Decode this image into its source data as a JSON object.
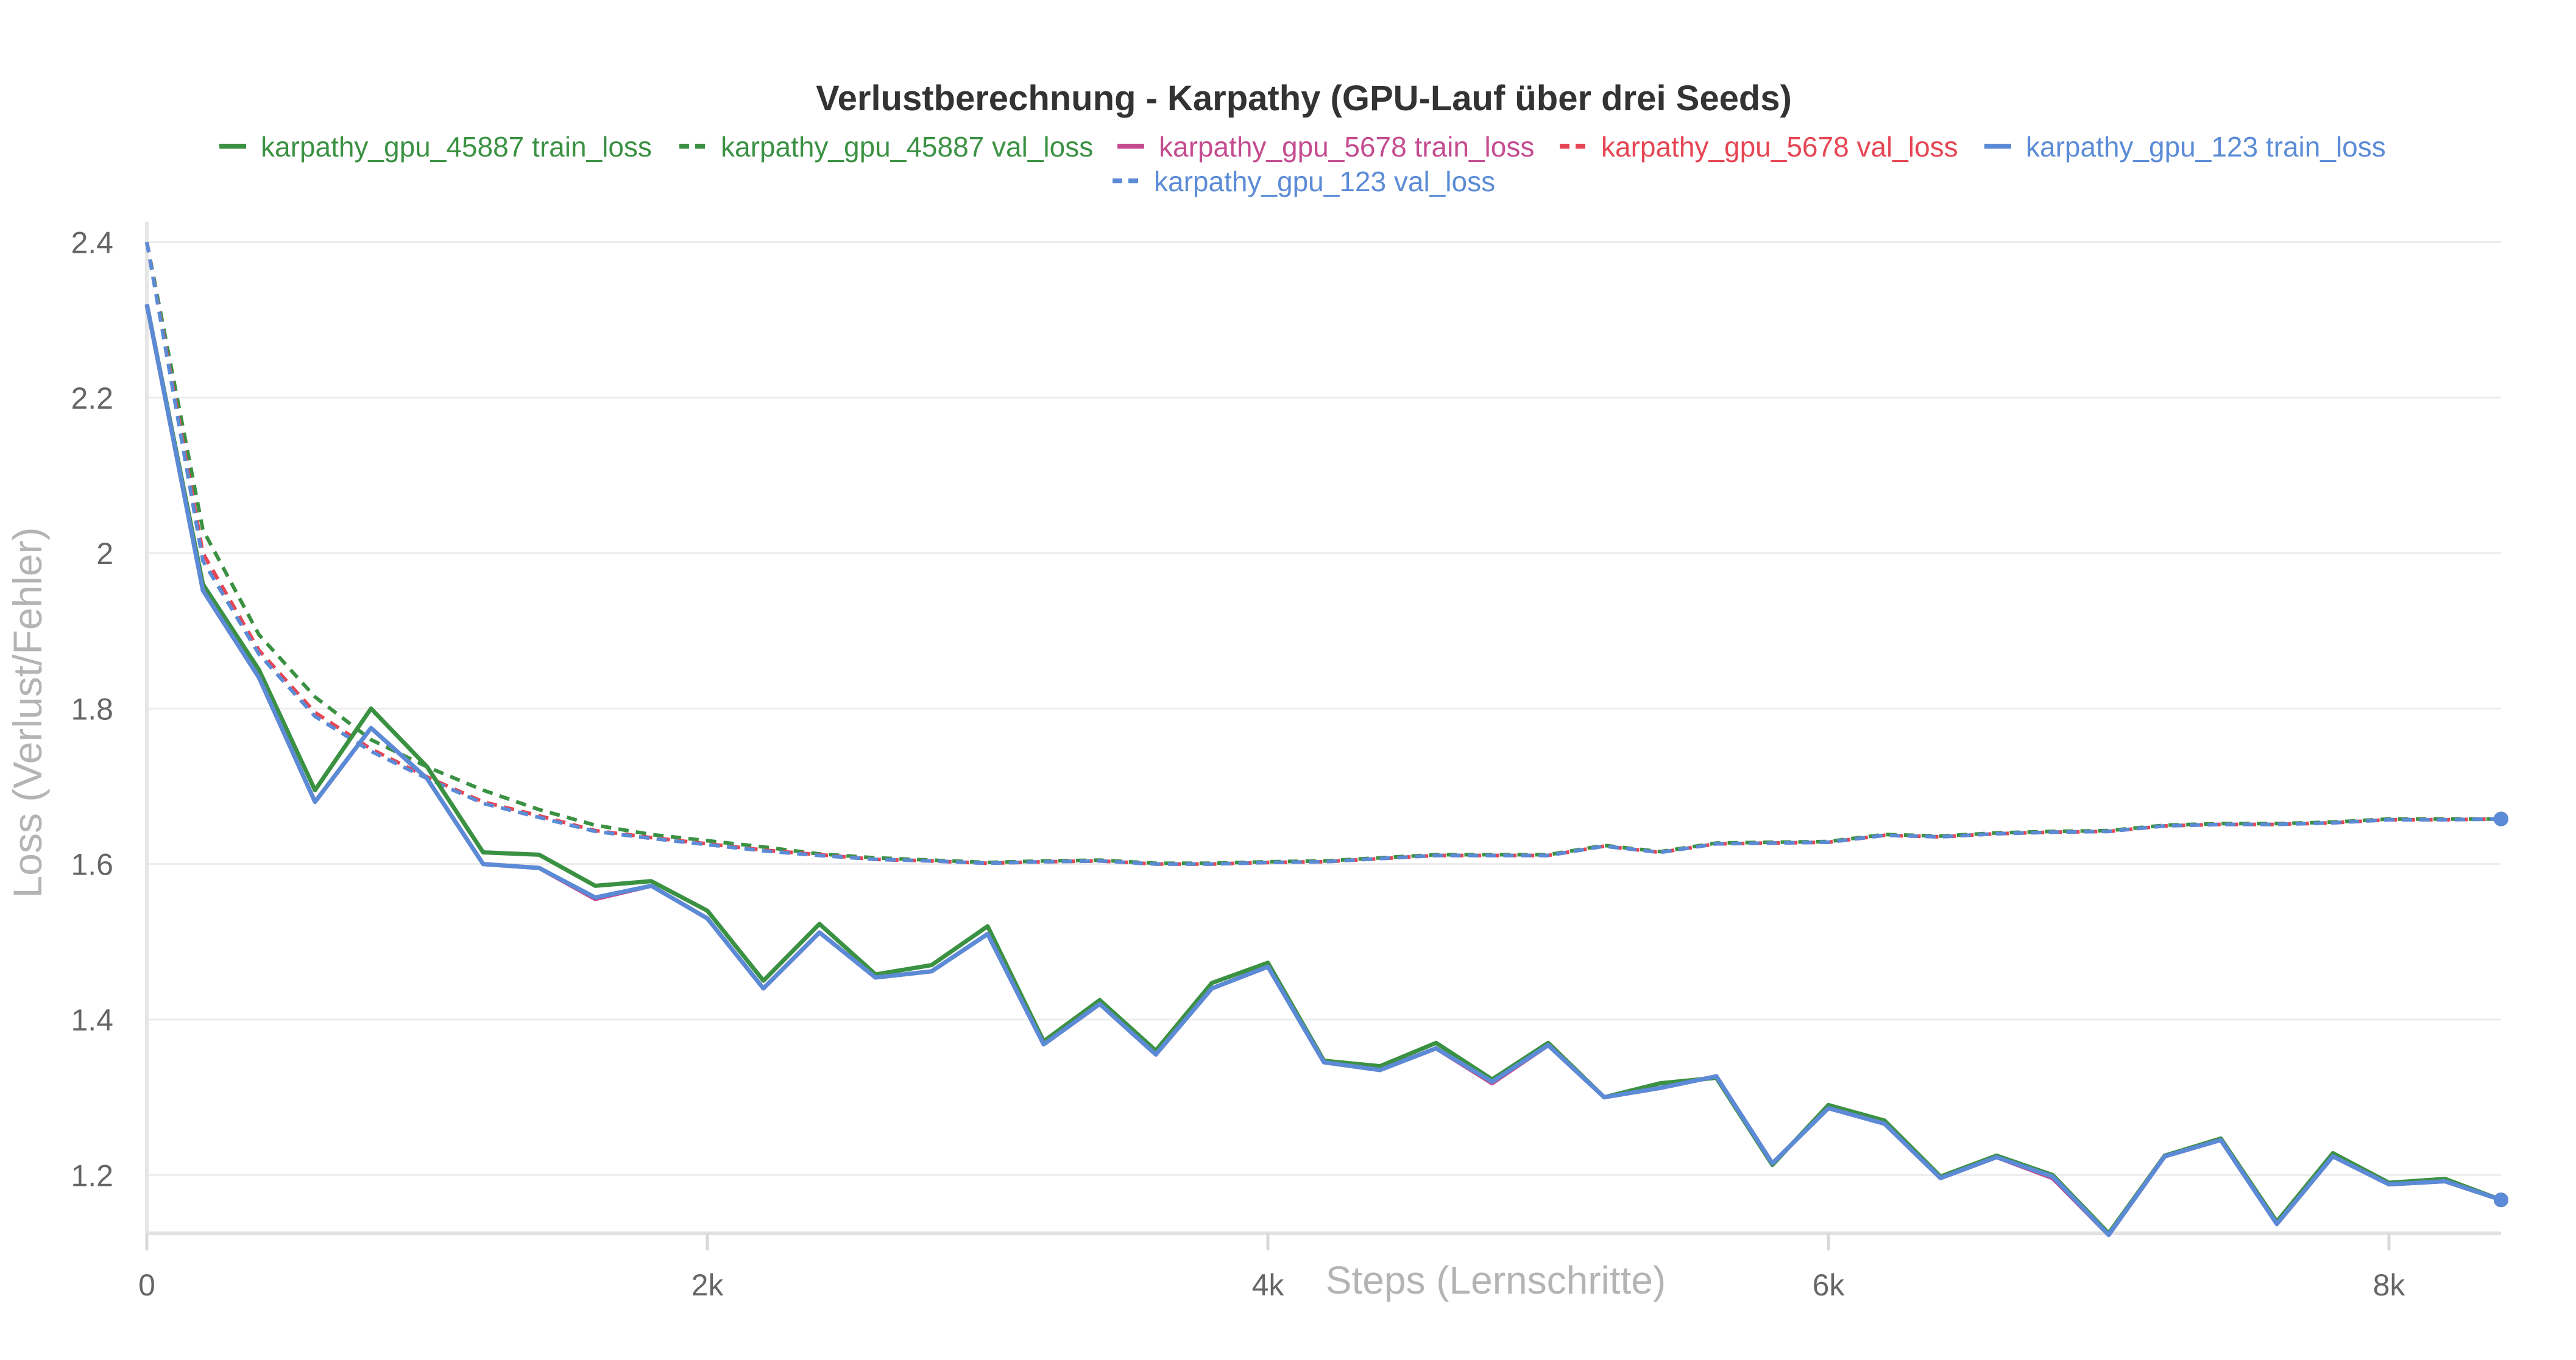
{
  "chart_data": {
    "type": "line",
    "title": "Verlustberechnung - Karpathy (GPU-Lauf über drei Seeds)",
    "xlabel": "Steps (Lernschritte)",
    "ylabel": "Loss (Verlust/Fehler)",
    "xlim": [
      0,
      8400
    ],
    "ylim": [
      1.125,
      2.42
    ],
    "x_ticks": [
      0,
      2000,
      4000,
      6000,
      8000
    ],
    "x_tick_labels": [
      "0",
      "2k",
      "4k",
      "6k",
      "8k"
    ],
    "y_ticks": [
      1.2,
      1.4,
      1.6,
      1.8,
      2.0,
      2.2,
      2.4
    ],
    "y_tick_labels": [
      "1.2",
      "1.4",
      "1.6",
      "1.8",
      "2",
      "2.2",
      "2.4"
    ],
    "grid": true,
    "legend_position": "top",
    "x": [
      0,
      200,
      400,
      600,
      800,
      1000,
      1200,
      1400,
      1600,
      1800,
      2000,
      2200,
      2400,
      2600,
      2800,
      3000,
      3200,
      3400,
      3600,
      3800,
      4000,
      4200,
      4400,
      4600,
      4800,
      5000,
      5200,
      5400,
      5600,
      5800,
      6000,
      6200,
      6400,
      6600,
      6800,
      7000,
      7200,
      7400,
      7600,
      7800,
      8000,
      8200,
      8400
    ],
    "series": [
      {
        "name": "karpathy_gpu_45887 train_loss",
        "color": "#3a9142",
        "dashed": false,
        "values": [
          2.32,
          1.96,
          1.85,
          1.695,
          1.8,
          1.725,
          1.615,
          1.612,
          1.572,
          1.578,
          1.54,
          1.45,
          1.523,
          1.458,
          1.47,
          1.52,
          1.372,
          1.425,
          1.36,
          1.447,
          1.473,
          1.347,
          1.34,
          1.37,
          1.323,
          1.37,
          1.3,
          1.318,
          1.325,
          1.213,
          1.29,
          1.27,
          1.198,
          1.225,
          1.2,
          1.125,
          1.225,
          1.247,
          1.14,
          1.228,
          1.19,
          1.195,
          1.168
        ]
      },
      {
        "name": "karpathy_gpu_45887 val_loss",
        "color": "#3a9142",
        "dashed": true,
        "values": [
          2.4,
          2.03,
          1.895,
          1.815,
          1.76,
          1.725,
          1.695,
          1.67,
          1.65,
          1.638,
          1.63,
          1.622,
          1.613,
          1.608,
          1.605,
          1.602,
          1.604,
          1.605,
          1.601,
          1.601,
          1.603,
          1.604,
          1.608,
          1.612,
          1.612,
          1.612,
          1.624,
          1.616,
          1.627,
          1.628,
          1.629,
          1.638,
          1.636,
          1.64,
          1.642,
          1.643,
          1.65,
          1.652,
          1.652,
          1.654,
          1.658,
          1.658,
          1.658
        ]
      },
      {
        "name": "karpathy_gpu_5678 train_loss",
        "color": "#c44b8f",
        "dashed": false,
        "values": [
          2.32,
          1.952,
          1.84,
          1.68,
          1.775,
          1.71,
          1.6,
          1.595,
          1.555,
          1.572,
          1.53,
          1.44,
          1.512,
          1.454,
          1.462,
          1.51,
          1.368,
          1.42,
          1.355,
          1.44,
          1.468,
          1.345,
          1.335,
          1.363,
          1.318,
          1.367,
          1.3,
          1.312,
          1.327,
          1.215,
          1.286,
          1.266,
          1.196,
          1.223,
          1.196,
          1.123,
          1.224,
          1.245,
          1.137,
          1.224,
          1.188,
          1.192,
          1.168
        ]
      },
      {
        "name": "karpathy_gpu_5678 val_loss",
        "color": "#e64553",
        "dashed": true,
        "values": [
          2.4,
          2.0,
          1.875,
          1.795,
          1.748,
          1.712,
          1.68,
          1.662,
          1.643,
          1.634,
          1.626,
          1.618,
          1.612,
          1.606,
          1.604,
          1.601,
          1.603,
          1.604,
          1.6,
          1.6,
          1.602,
          1.603,
          1.607,
          1.611,
          1.611,
          1.611,
          1.623,
          1.615,
          1.626,
          1.627,
          1.628,
          1.637,
          1.635,
          1.639,
          1.641,
          1.642,
          1.649,
          1.651,
          1.651,
          1.653,
          1.657,
          1.657,
          1.658
        ]
      },
      {
        "name": "karpathy_gpu_123 train_loss",
        "color": "#5b8bd6",
        "dashed": false,
        "values": [
          2.32,
          1.952,
          1.84,
          1.68,
          1.775,
          1.71,
          1.6,
          1.595,
          1.557,
          1.572,
          1.53,
          1.44,
          1.512,
          1.454,
          1.462,
          1.51,
          1.368,
          1.42,
          1.355,
          1.44,
          1.468,
          1.345,
          1.335,
          1.363,
          1.32,
          1.367,
          1.3,
          1.312,
          1.327,
          1.215,
          1.286,
          1.266,
          1.196,
          1.223,
          1.198,
          1.123,
          1.224,
          1.245,
          1.137,
          1.224,
          1.188,
          1.192,
          1.168
        ]
      },
      {
        "name": "karpathy_gpu_123 val_loss",
        "color": "#5b8bd6",
        "dashed": true,
        "values": [
          2.4,
          1.99,
          1.87,
          1.79,
          1.745,
          1.71,
          1.678,
          1.66,
          1.642,
          1.633,
          1.625,
          1.617,
          1.611,
          1.606,
          1.604,
          1.601,
          1.603,
          1.604,
          1.6,
          1.6,
          1.602,
          1.603,
          1.607,
          1.611,
          1.611,
          1.611,
          1.623,
          1.615,
          1.626,
          1.627,
          1.628,
          1.637,
          1.635,
          1.639,
          1.641,
          1.642,
          1.649,
          1.651,
          1.651,
          1.653,
          1.657,
          1.657,
          1.658
        ]
      }
    ]
  }
}
